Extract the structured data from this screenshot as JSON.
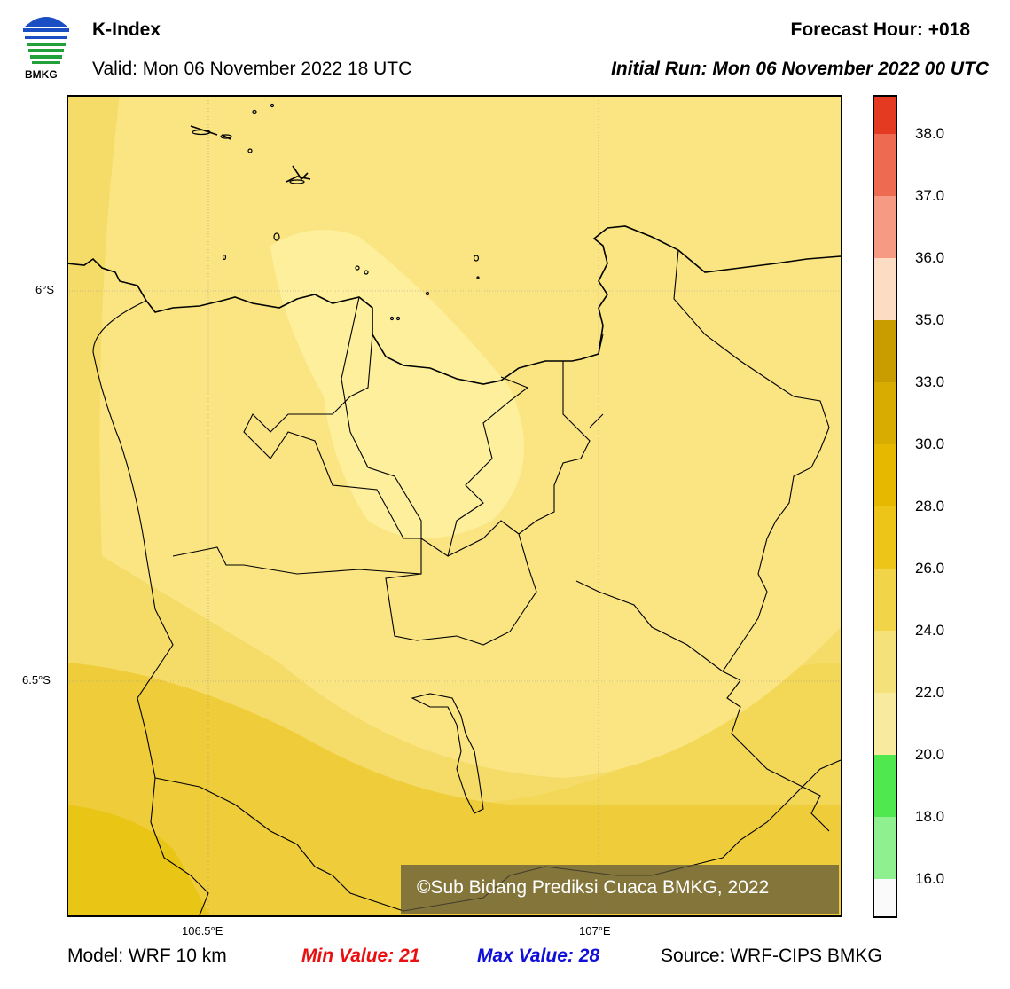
{
  "header": {
    "title": "K-Index",
    "valid": "Valid: Mon 06 November 2022 18 UTC",
    "forecast_hour": "Forecast Hour: +018",
    "initial_run": "Initial Run: Mon 06 November 2022 00 UTC",
    "logo_text": "BMKG"
  },
  "map": {
    "lat_labels": [
      "6°S",
      "6.5°S"
    ],
    "lon_labels": [
      "106.5°E",
      "107°E"
    ],
    "credit": "©Sub Bidang Prediksi Cuaca BMKG, 2022",
    "fill_colors": {
      "lightest": "#fdef9b",
      "light": "#fae582",
      "mid": "#f3d858",
      "darker": "#efcd3a",
      "darkest": "#e9c515"
    }
  },
  "colorbar": {
    "labels": [
      "38.0",
      "37.0",
      "36.0",
      "35.0",
      "33.0",
      "30.0",
      "28.0",
      "26.0",
      "24.0",
      "22.0",
      "20.0",
      "18.0",
      "16.0"
    ],
    "colors_top_to_bottom": [
      "#e53a22",
      "#ee6a50",
      "#f79a84",
      "#fddcc4",
      "#c99d00",
      "#d8ac00",
      "#e6b800",
      "#ecc518",
      "#f1d448",
      "#f5e17a",
      "#f8eb9f",
      "#4fe84f",
      "#8ff08f",
      "#fafafa"
    ]
  },
  "footer": {
    "model": "Model: WRF 10 km",
    "min_value": "Min Value: 21",
    "max_value": "Max Value: 28",
    "source": "Source: WRF-CIPS BMKG"
  }
}
